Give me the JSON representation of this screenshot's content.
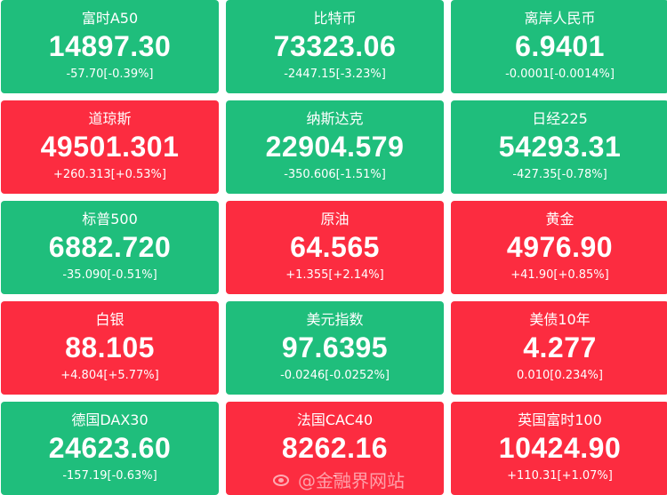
{
  "colors": {
    "up": "#fc2c40",
    "down": "#1fbe7c",
    "text": "#ffffff"
  },
  "tiles": [
    {
      "name": "富时A50",
      "price": "14897.30",
      "change": "-57.70[-0.39%]",
      "direction": "down"
    },
    {
      "name": "比特币",
      "price": "73323.06",
      "change": "-2447.15[-3.23%]",
      "direction": "down"
    },
    {
      "name": "离岸人民币",
      "price": "6.9401",
      "change": "-0.0001[-0.0014%]",
      "direction": "down"
    },
    {
      "name": "道琼斯",
      "price": "49501.301",
      "change": "+260.313[+0.53%]",
      "direction": "up"
    },
    {
      "name": "纳斯达克",
      "price": "22904.579",
      "change": "-350.606[-1.51%]",
      "direction": "down"
    },
    {
      "name": "日经225",
      "price": "54293.31",
      "change": "-427.35[-0.78%]",
      "direction": "down"
    },
    {
      "name": "标普500",
      "price": "6882.720",
      "change": "-35.090[-0.51%]",
      "direction": "down"
    },
    {
      "name": "原油",
      "price": "64.565",
      "change": "+1.355[+2.14%]",
      "direction": "up"
    },
    {
      "name": "黄金",
      "price": "4976.90",
      "change": "+41.90[+0.85%]",
      "direction": "up"
    },
    {
      "name": "白银",
      "price": "88.105",
      "change": "+4.804[+5.77%]",
      "direction": "up"
    },
    {
      "name": "美元指数",
      "price": "97.6395",
      "change": "-0.0246[-0.0252%]",
      "direction": "down"
    },
    {
      "name": "美债10年",
      "price": "4.277",
      "change": "0.010[0.234%]",
      "direction": "up"
    },
    {
      "name": "德国DAX30",
      "price": "24623.60",
      "change": "-157.19[-0.63%]",
      "direction": "down"
    },
    {
      "name": "法国CAC40",
      "price": "8262.16",
      "change": "-",
      "direction": "up"
    },
    {
      "name": "英国富时100",
      "price": "10424.90",
      "change": "+110.31[+1.07%]",
      "direction": "up"
    }
  ],
  "watermark": {
    "text": "@金融界网站",
    "icon": "weibo-icon"
  }
}
